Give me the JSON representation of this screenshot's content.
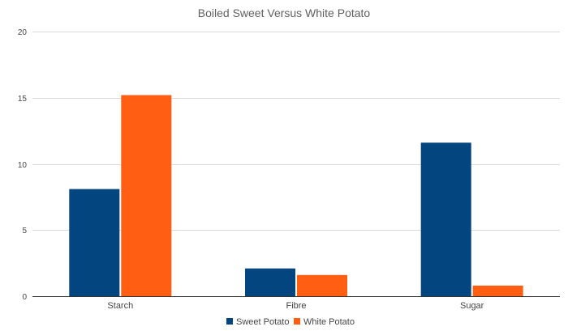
{
  "chart_data": {
    "type": "bar",
    "title": "Boiled Sweet Versus White Potato",
    "xlabel": "",
    "ylabel": "",
    "categories": [
      "Starch",
      "Fibre",
      "Sugar"
    ],
    "series": [
      {
        "name": "Sweet Potato",
        "color": "#03457e",
        "values": [
          8.1,
          2.1,
          11.6
        ]
      },
      {
        "name": "White Potato",
        "color": "#ff5e13",
        "values": [
          15.2,
          1.6,
          0.8
        ]
      }
    ],
    "ylim": [
      0,
      20
    ],
    "yticks": [
      0,
      5,
      10,
      15,
      20
    ],
    "grid": true,
    "legend_position": "bottom"
  }
}
